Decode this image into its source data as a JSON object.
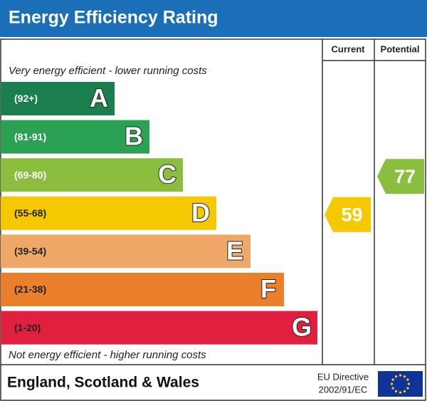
{
  "header": {
    "title": "Energy Efficiency Rating"
  },
  "columns": {
    "current": "Current",
    "potential": "Potential"
  },
  "top_note": "Very energy efficient - lower running costs",
  "bottom_note": "Not energy efficient - higher running costs",
  "bands": [
    {
      "range": "(92+)",
      "letter": "A",
      "color": "#1b7e4e"
    },
    {
      "range": "(81-91)",
      "letter": "B",
      "color": "#2ba253"
    },
    {
      "range": "(69-80)",
      "letter": "C",
      "color": "#8bbd3f"
    },
    {
      "range": "(55-68)",
      "letter": "D",
      "color": "#f5c800"
    },
    {
      "range": "(39-54)",
      "letter": "E",
      "color": "#f0a868"
    },
    {
      "range": "(21-38)",
      "letter": "F",
      "color": "#eb7f2b"
    },
    {
      "range": "(1-20)",
      "letter": "G",
      "color": "#e0203e"
    }
  ],
  "current": {
    "value": 59,
    "color": "#f5c800"
  },
  "potential": {
    "value": 77,
    "color": "#8bbd3f"
  },
  "footer": {
    "region": "England, Scotland & Wales",
    "directive": [
      "EU Directive",
      "2002/91/EC"
    ]
  }
}
